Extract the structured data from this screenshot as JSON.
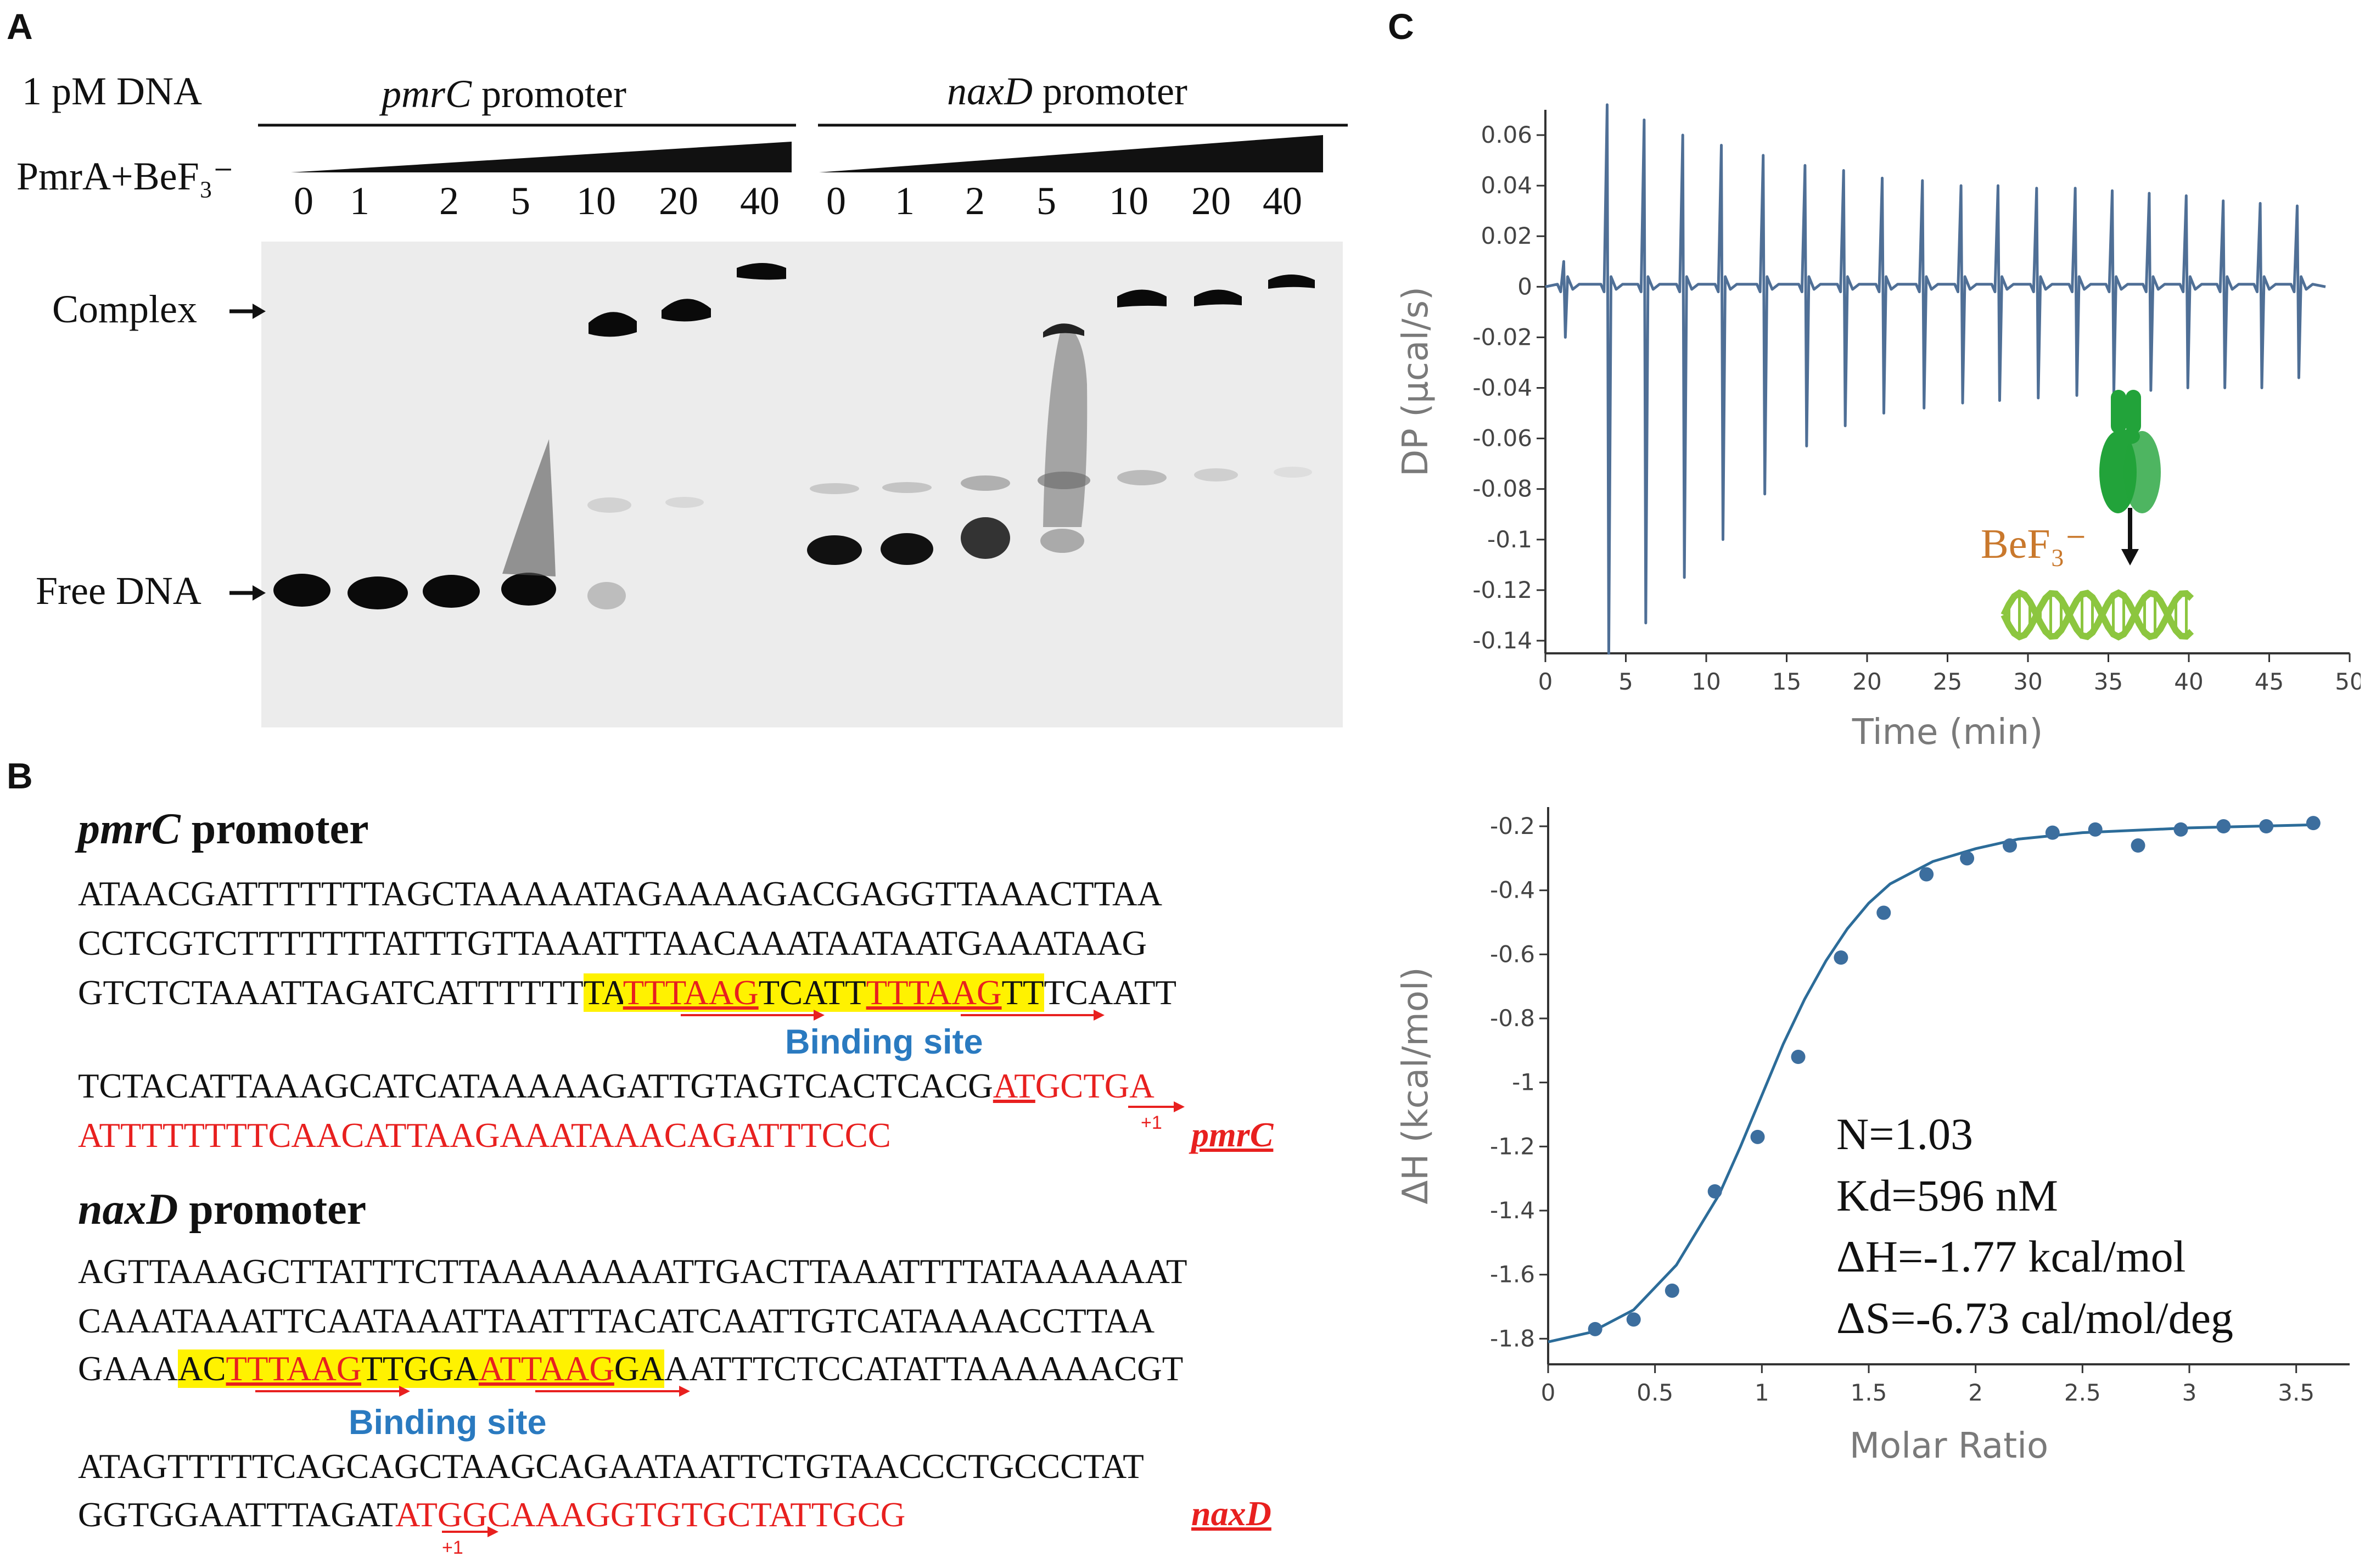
{
  "panel_a": {
    "label": "A",
    "dna_label": "1 pM DNA",
    "protein_label": "PmrA+BeF₃⁻",
    "pmrc_header": {
      "gene": "pmrC",
      "rest": " promoter"
    },
    "naxd_header": {
      "gene": "naxD",
      "rest": " promoter"
    },
    "lane_values_pmrc": [
      "0",
      "1",
      "2",
      "5",
      "10",
      "20",
      "40"
    ],
    "lane_values_naxd": [
      "0",
      "1",
      "2",
      "5",
      "10",
      "20",
      "40"
    ],
    "complex_label": "Complex",
    "free_label": "Free DNA"
  },
  "panel_b": {
    "label": "B",
    "pmrc": {
      "title_gene": "pmrC",
      "title_rest": " promoter",
      "line1": "ATAACGATTTTTTTAGCTAAAAATAGAAAAGACGAGGTTAAACTTAA",
      "line2": "CCTCGTCTTTTTTTATTTGTTAAATTTAACAAATAATAATGAAATAAG",
      "line3_pre": "GTCTCTAAATTAGATCATTTTTT",
      "line3_hl_a": "TA",
      "line3_site1": "TTTAAG",
      "line3_hl_b": "TCATT",
      "line3_site2": "TTTAAG",
      "line3_hl_c": "TT",
      "line3_post": "TCAATT",
      "binding_site": "Binding site",
      "line4_black": "TCTACATTAAAGCATCATAAAAAGATTGTAGTCACTCACG",
      "line4_start": "AT",
      "line4_red": "GCTGA",
      "line5_red": "ATTTTTTTTCAACATTAAGAAATAAACAGATTTCCC",
      "plus1": "+1",
      "gene_tag": "pmrC"
    },
    "naxd": {
      "title_gene": "naxD",
      "title_rest": " promoter",
      "line1": "AGTTAAAGCTTATTTCTTAAAAAAAATTGACTTAAATTTTATAAAAAAT",
      "line2": "CAAATAAATTCAATAAATTAATTTACATCAATTGTCATAAAACCTTAA",
      "line3_pre": "GAAA",
      "line3_hl_a": "AC",
      "line3_site1": "TTTAAG",
      "line3_hl_b": "TTGGA",
      "line3_site2": "ATTAAG",
      "line3_hl_c": "GA",
      "line3_post": "AATTTCTCCATATTAAAAAACGT",
      "binding_site": "Binding site",
      "line4": "ATAGTTTTTCAGCAGCTAAGCAGAATAATTCTGTAACCCTGCCCTAT",
      "line5_black": "GGTGGAATTTAGAT",
      "line5_red": "ATGGCAAAGGTGTGCTATTGCG",
      "plus1": "+1",
      "gene_tag": "naxD"
    }
  },
  "panel_c": {
    "label": "C",
    "inset_label": "BeF₃⁻",
    "colors": {
      "trace": "#4f6f96",
      "fit": "#2c6c99",
      "points": "#3c6e9e",
      "protein": "#22a33a",
      "dna": "#8cc63f",
      "befx": "#c9782c"
    },
    "stats": [
      "N=1.03",
      "Kd=596 nM",
      "ΔH=-1.77 kcal/mol",
      "ΔS=-6.73 cal/mol/deg"
    ]
  },
  "chart_data": [
    {
      "type": "line",
      "xlabel": "Time (min)",
      "ylabel": "DP (µcal/s)",
      "xlim": [
        0,
        50
      ],
      "ylim": [
        -0.145,
        0.07
      ],
      "xticks": [
        "0",
        "5",
        "10",
        "15",
        "20",
        "25",
        "30",
        "35",
        "40",
        "45",
        "50"
      ],
      "yticks": [
        "0.06",
        "0.04",
        "0.02",
        "0",
        "-0.02",
        "-0.04",
        "-0.06",
        "-0.08",
        "-0.1",
        "-0.12",
        "-0.14"
      ],
      "injections": {
        "time": [
          1.2,
          3.9,
          6.2,
          8.6,
          11.0,
          13.6,
          16.2,
          18.6,
          21.0,
          23.5,
          25.9,
          28.2,
          30.6,
          33.0,
          35.3,
          37.6,
          39.9,
          42.2,
          44.5,
          46.8
        ],
        "peak_up": [
          0.01,
          0.072,
          0.066,
          0.06,
          0.056,
          0.052,
          0.048,
          0.046,
          0.043,
          0.042,
          0.04,
          0.04,
          0.039,
          0.039,
          0.038,
          0.037,
          0.036,
          0.034,
          0.033,
          0.032
        ],
        "peak_down": [
          -0.02,
          -0.145,
          -0.133,
          -0.115,
          -0.1,
          -0.082,
          -0.063,
          -0.055,
          -0.05,
          -0.048,
          -0.046,
          -0.045,
          -0.044,
          -0.043,
          -0.042,
          -0.041,
          -0.04,
          -0.04,
          -0.04,
          -0.036
        ]
      }
    },
    {
      "type": "scatter",
      "xlabel": "Molar Ratio",
      "ylabel": "ΔH (kcal/mol)",
      "xlim": [
        0,
        3.75
      ],
      "ylim": [
        -1.88,
        -0.14
      ],
      "xticks": [
        "0",
        "0.5",
        "1",
        "1.5",
        "2",
        "2.5",
        "3",
        "3.5"
      ],
      "yticks": [
        "-0.2",
        "-0.4",
        "-0.6",
        "-0.8",
        "-1",
        "-1.2",
        "-1.4",
        "-1.6",
        "-1.8"
      ],
      "points": {
        "x": [
          0.22,
          0.4,
          0.58,
          0.78,
          0.98,
          1.17,
          1.37,
          1.57,
          1.77,
          1.96,
          2.16,
          2.36,
          2.56,
          2.76,
          2.96,
          3.16,
          3.36,
          3.58
        ],
        "y": [
          -1.77,
          -1.74,
          -1.65,
          -1.34,
          -1.17,
          -0.92,
          -0.61,
          -0.47,
          -0.35,
          -0.3,
          -0.26,
          -0.22,
          -0.21,
          -0.26,
          -0.21,
          -0.2,
          -0.2,
          -0.19
        ]
      },
      "fit": {
        "x": [
          0.0,
          0.2,
          0.4,
          0.6,
          0.8,
          0.9,
          1.0,
          1.1,
          1.2,
          1.3,
          1.4,
          1.5,
          1.6,
          1.8,
          2.0,
          2.2,
          2.5,
          3.0,
          3.6
        ],
        "y": [
          -1.81,
          -1.78,
          -1.71,
          -1.57,
          -1.35,
          -1.2,
          -1.04,
          -0.88,
          -0.74,
          -0.62,
          -0.52,
          -0.44,
          -0.38,
          -0.31,
          -0.27,
          -0.24,
          -0.22,
          -0.205,
          -0.195
        ]
      }
    }
  ]
}
